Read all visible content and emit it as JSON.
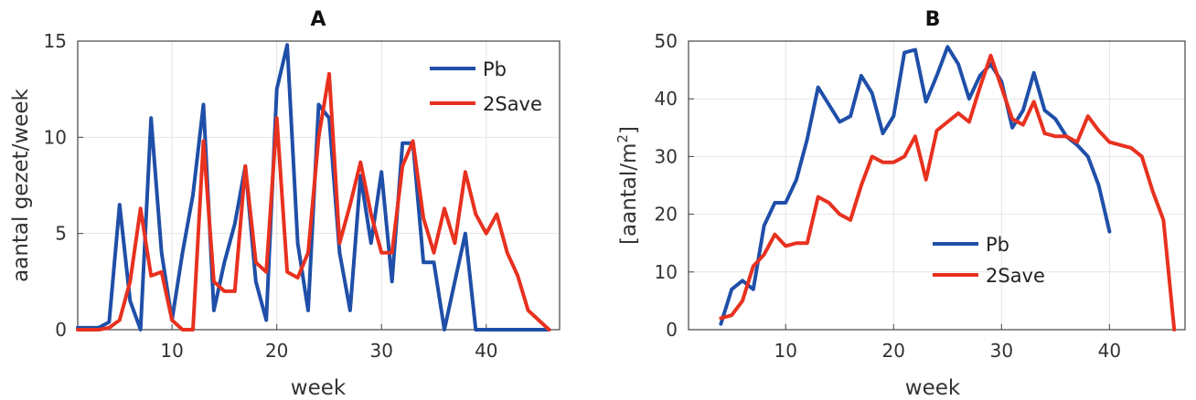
{
  "chart_data": [
    {
      "type": "line",
      "title": "A",
      "xlabel": "week",
      "ylabel": "aantal gezet/week",
      "xlim": [
        1,
        47
      ],
      "ylim": [
        0,
        15
      ],
      "xticks": [
        10,
        20,
        30,
        40
      ],
      "yticks": [
        0,
        5,
        10,
        15
      ],
      "grid": true,
      "legend_position": "top-right",
      "series": [
        {
          "name": "Pb",
          "color": "#1f4fa8",
          "x": [
            1,
            2,
            3,
            4,
            5,
            6,
            7,
            8,
            9,
            10,
            11,
            12,
            13,
            14,
            15,
            16,
            17,
            18,
            19,
            20,
            21,
            22,
            23,
            24,
            25,
            26,
            27,
            28,
            29,
            30,
            31,
            32,
            33,
            34,
            35,
            36,
            37,
            38,
            39,
            40,
            41,
            42,
            43,
            44,
            45,
            46
          ],
          "y": [
            0.1,
            0.1,
            0.1,
            0.4,
            6.5,
            1.5,
            0,
            11,
            4,
            0.5,
            4,
            7,
            11.7,
            1,
            3.5,
            5.5,
            8.5,
            2.5,
            0.5,
            12.5,
            14.8,
            4.5,
            1,
            11.7,
            11,
            4,
            1,
            8,
            4.5,
            8.2,
            2.5,
            9.7,
            9.7,
            3.5,
            3.5,
            0,
            2.5,
            5,
            0,
            0,
            0,
            0,
            0,
            0,
            0,
            0
          ]
        },
        {
          "name": "2Save",
          "color": "#e8311f",
          "x": [
            1,
            2,
            3,
            4,
            5,
            6,
            7,
            8,
            9,
            10,
            11,
            12,
            13,
            14,
            15,
            16,
            17,
            18,
            19,
            20,
            21,
            22,
            23,
            24,
            25,
            26,
            27,
            28,
            29,
            30,
            31,
            32,
            33,
            34,
            35,
            36,
            37,
            38,
            39,
            40,
            41,
            42,
            43,
            44,
            45,
            46
          ],
          "y": [
            0,
            0,
            0,
            0.1,
            0.5,
            2.5,
            6.3,
            2.8,
            3,
            0.5,
            0,
            0,
            9.8,
            2.5,
            2,
            2,
            8.5,
            3.5,
            3,
            11,
            3,
            2.7,
            4,
            10,
            13.3,
            4.5,
            6.5,
            8.7,
            6,
            4,
            4,
            8.5,
            9.8,
            5.8,
            4,
            6.3,
            4.5,
            8.2,
            6,
            5,
            6,
            4,
            2.8,
            1,
            0.5,
            0
          ]
        }
      ]
    },
    {
      "type": "line",
      "title": "B",
      "xlabel": "week",
      "ylabel": "[aantal/m",
      "ylabel_sup": "2",
      "ylabel_end": "]",
      "xlim": [
        1,
        47
      ],
      "ylim": [
        0,
        50
      ],
      "xticks": [
        10,
        20,
        30,
        40
      ],
      "yticks": [
        0,
        10,
        20,
        30,
        40,
        50
      ],
      "grid": true,
      "legend_position": "center-right",
      "series": [
        {
          "name": "Pb",
          "color": "#1f4fa8",
          "x": [
            4,
            5,
            6,
            7,
            8,
            9,
            10,
            11,
            12,
            13,
            14,
            15,
            16,
            17,
            18,
            19,
            20,
            21,
            22,
            23,
            24,
            25,
            26,
            27,
            28,
            29,
            30,
            31,
            32,
            33,
            34,
            35,
            36,
            37,
            38,
            39,
            40
          ],
          "y": [
            1,
            7,
            8.5,
            7,
            18,
            22,
            22,
            26,
            33,
            42,
            39,
            36,
            37,
            44,
            41,
            34,
            37,
            48,
            48.5,
            39.5,
            44,
            49,
            46,
            40,
            44,
            46,
            43,
            35,
            38,
            44.5,
            38,
            36.5,
            33.5,
            32,
            30,
            25,
            17
          ]
        },
        {
          "name": "2Save",
          "color": "#e8311f",
          "x": [
            4,
            5,
            6,
            7,
            8,
            9,
            10,
            11,
            12,
            13,
            14,
            15,
            16,
            17,
            18,
            19,
            20,
            21,
            22,
            23,
            24,
            25,
            26,
            27,
            28,
            29,
            30,
            31,
            32,
            33,
            34,
            35,
            36,
            37,
            38,
            39,
            40,
            41,
            42,
            43,
            44,
            45,
            46
          ],
          "y": [
            2,
            2.5,
            5,
            11,
            13,
            16.5,
            14.5,
            15,
            15,
            23,
            22,
            20,
            19,
            25,
            30,
            29,
            29,
            30,
            33.5,
            26,
            34.5,
            36,
            37.5,
            36,
            42,
            47.5,
            42,
            36.5,
            35.5,
            39.5,
            34,
            33.5,
            33.5,
            32.5,
            37,
            34.5,
            32.5,
            32,
            31.5,
            30,
            24,
            19,
            0
          ]
        }
      ]
    }
  ]
}
